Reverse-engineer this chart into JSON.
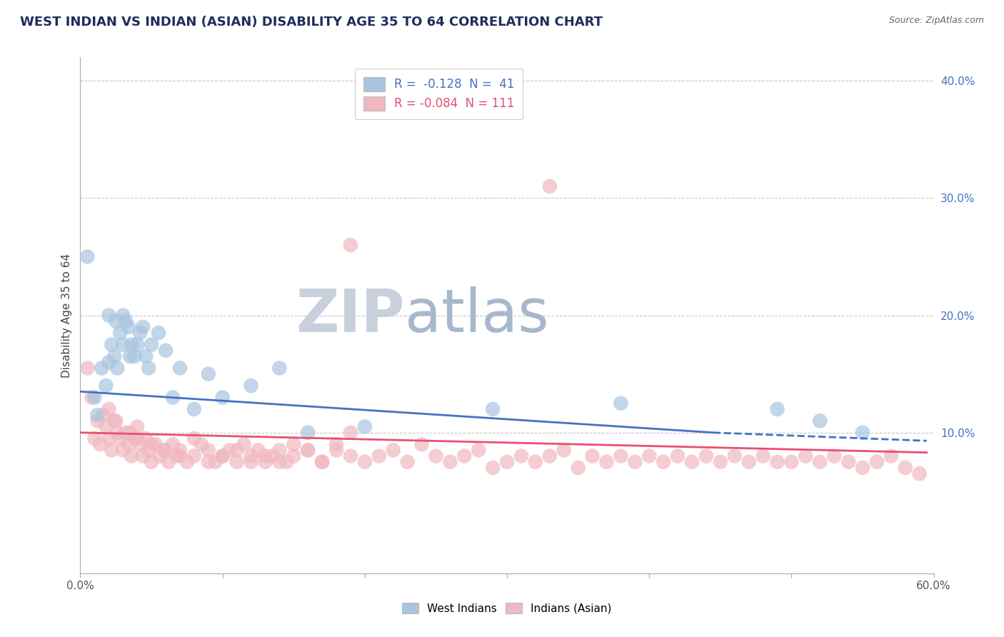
{
  "title": "WEST INDIAN VS INDIAN (ASIAN) DISABILITY AGE 35 TO 64 CORRELATION CHART",
  "source_text": "Source: ZipAtlas.com",
  "ylabel": "Disability Age 35 to 64",
  "xlim": [
    0.0,
    0.6
  ],
  "ylim": [
    -0.02,
    0.42
  ],
  "xticks": [
    0.0,
    0.1,
    0.2,
    0.3,
    0.4,
    0.5,
    0.6
  ],
  "xticklabels": [
    "0.0%",
    "",
    "",
    "",
    "",
    "",
    "60.0%"
  ],
  "yticks_right": [
    0.1,
    0.2,
    0.3,
    0.4
  ],
  "ytick_right_labels": [
    "10.0%",
    "20.0%",
    "30.0%",
    "40.0%"
  ],
  "legend_r_blue": "-0.128",
  "legend_n_blue": "41",
  "legend_r_pink": "-0.084",
  "legend_n_pink": "111",
  "blue_color": "#A8C4E0",
  "pink_color": "#F0B8C0",
  "blue_line_color": "#4472C4",
  "pink_line_color": "#E85070",
  "title_color": "#1F2D5C",
  "source_color": "#666666",
  "watermark_zip_color": "#C8D0DC",
  "watermark_atlas_color": "#A8B8CC",
  "grid_color": "#C8C8C8",
  "blue_scatter_x": [
    0.005,
    0.01,
    0.012,
    0.015,
    0.018,
    0.02,
    0.022,
    0.024,
    0.026,
    0.028,
    0.03,
    0.032,
    0.034,
    0.036,
    0.038,
    0.04,
    0.042,
    0.044,
    0.046,
    0.048,
    0.05,
    0.055,
    0.06,
    0.065,
    0.07,
    0.08,
    0.09,
    0.1,
    0.12,
    0.14,
    0.16,
    0.2,
    0.29,
    0.38,
    0.49,
    0.52,
    0.55,
    0.02,
    0.025,
    0.03,
    0.035
  ],
  "blue_scatter_y": [
    0.25,
    0.13,
    0.115,
    0.155,
    0.14,
    0.16,
    0.175,
    0.165,
    0.155,
    0.185,
    0.2,
    0.195,
    0.19,
    0.175,
    0.165,
    0.175,
    0.185,
    0.19,
    0.165,
    0.155,
    0.175,
    0.185,
    0.17,
    0.13,
    0.155,
    0.12,
    0.15,
    0.13,
    0.14,
    0.155,
    0.1,
    0.105,
    0.12,
    0.125,
    0.12,
    0.11,
    0.1,
    0.2,
    0.195,
    0.175,
    0.165
  ],
  "pink_scatter_x": [
    0.005,
    0.008,
    0.01,
    0.012,
    0.014,
    0.016,
    0.018,
    0.02,
    0.022,
    0.024,
    0.026,
    0.028,
    0.03,
    0.032,
    0.034,
    0.036,
    0.038,
    0.04,
    0.042,
    0.044,
    0.046,
    0.048,
    0.05,
    0.053,
    0.056,
    0.059,
    0.062,
    0.065,
    0.068,
    0.07,
    0.075,
    0.08,
    0.085,
    0.09,
    0.095,
    0.1,
    0.105,
    0.11,
    0.115,
    0.12,
    0.125,
    0.13,
    0.135,
    0.14,
    0.145,
    0.15,
    0.16,
    0.17,
    0.18,
    0.19,
    0.2,
    0.21,
    0.22,
    0.23,
    0.24,
    0.25,
    0.26,
    0.27,
    0.28,
    0.29,
    0.3,
    0.31,
    0.32,
    0.33,
    0.34,
    0.35,
    0.36,
    0.37,
    0.38,
    0.39,
    0.4,
    0.41,
    0.42,
    0.43,
    0.44,
    0.45,
    0.46,
    0.47,
    0.48,
    0.49,
    0.5,
    0.51,
    0.52,
    0.53,
    0.54,
    0.55,
    0.56,
    0.57,
    0.58,
    0.59,
    0.02,
    0.025,
    0.035,
    0.04,
    0.05,
    0.06,
    0.07,
    0.08,
    0.09,
    0.1,
    0.11,
    0.12,
    0.13,
    0.14,
    0.15,
    0.16,
    0.17,
    0.18,
    0.19,
    0.33,
    0.19
  ],
  "pink_scatter_y": [
    0.155,
    0.13,
    0.095,
    0.11,
    0.09,
    0.115,
    0.105,
    0.095,
    0.085,
    0.11,
    0.1,
    0.095,
    0.085,
    0.1,
    0.09,
    0.08,
    0.095,
    0.105,
    0.09,
    0.08,
    0.095,
    0.085,
    0.075,
    0.09,
    0.08,
    0.085,
    0.075,
    0.09,
    0.08,
    0.085,
    0.075,
    0.08,
    0.09,
    0.085,
    0.075,
    0.08,
    0.085,
    0.075,
    0.09,
    0.08,
    0.085,
    0.075,
    0.08,
    0.085,
    0.075,
    0.08,
    0.085,
    0.075,
    0.09,
    0.08,
    0.075,
    0.08,
    0.085,
    0.075,
    0.09,
    0.08,
    0.075,
    0.08,
    0.085,
    0.07,
    0.075,
    0.08,
    0.075,
    0.08,
    0.085,
    0.07,
    0.08,
    0.075,
    0.08,
    0.075,
    0.08,
    0.075,
    0.08,
    0.075,
    0.08,
    0.075,
    0.08,
    0.075,
    0.08,
    0.075,
    0.075,
    0.08,
    0.075,
    0.08,
    0.075,
    0.07,
    0.075,
    0.08,
    0.07,
    0.065,
    0.12,
    0.11,
    0.1,
    0.095,
    0.09,
    0.085,
    0.08,
    0.095,
    0.075,
    0.08,
    0.085,
    0.075,
    0.08,
    0.075,
    0.09,
    0.085,
    0.075,
    0.085,
    0.1,
    0.31,
    0.26
  ],
  "blue_trend_x0": 0.0,
  "blue_trend_y0": 0.135,
  "blue_trend_x1": 0.445,
  "blue_trend_y1": 0.1,
  "blue_trend_dash_x0": 0.445,
  "blue_trend_dash_y0": 0.1,
  "blue_trend_dash_x1": 0.595,
  "blue_trend_dash_y1": 0.093,
  "pink_trend_x0": 0.0,
  "pink_trend_y0": 0.1,
  "pink_trend_x1": 0.595,
  "pink_trend_y1": 0.083,
  "background_color": "#FFFFFF",
  "plot_bg_color": "#FFFFFF"
}
